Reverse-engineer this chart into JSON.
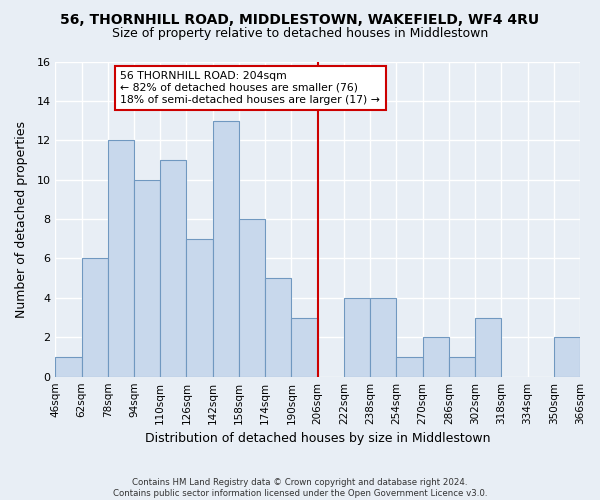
{
  "title": "56, THORNHILL ROAD, MIDDLESTOWN, WAKEFIELD, WF4 4RU",
  "subtitle": "Size of property relative to detached houses in Middlestown",
  "xlabel": "Distribution of detached houses by size in Middlestown",
  "ylabel": "Number of detached properties",
  "footer_line1": "Contains HM Land Registry data © Crown copyright and database right 2024.",
  "footer_line2": "Contains public sector information licensed under the Open Government Licence v3.0.",
  "bin_edges": [
    46,
    62,
    78,
    94,
    110,
    126,
    142,
    158,
    174,
    190,
    206,
    222,
    238,
    254,
    270,
    286,
    302,
    318,
    334,
    350,
    366
  ],
  "bin_labels": [
    "46sqm",
    "62sqm",
    "78sqm",
    "94sqm",
    "110sqm",
    "126sqm",
    "142sqm",
    "158sqm",
    "174sqm",
    "190sqm",
    "206sqm",
    "222sqm",
    "238sqm",
    "254sqm",
    "270sqm",
    "286sqm",
    "302sqm",
    "318sqm",
    "334sqm",
    "350sqm",
    "366sqm"
  ],
  "counts": [
    1,
    6,
    12,
    10,
    11,
    7,
    13,
    8,
    5,
    3,
    0,
    4,
    4,
    1,
    2,
    1,
    3,
    0,
    0,
    2,
    0
  ],
  "bar_color": "#c8d8ec",
  "bar_face_alpha": 0.7,
  "bar_edge_color": "#7098c0",
  "ref_line_x": 206,
  "ref_line_color": "#cc0000",
  "annotation_title": "56 THORNHILL ROAD: 204sqm",
  "annotation_line1": "← 82% of detached houses are smaller (76)",
  "annotation_line2": "18% of semi-detached houses are larger (17) →",
  "annotation_box_color": "#ffffff",
  "annotation_box_edge": "#cc0000",
  "ylim": [
    0,
    16
  ],
  "background_color": "#e8eef5",
  "plot_background": "#e8eef5",
  "grid_color": "#ffffff"
}
